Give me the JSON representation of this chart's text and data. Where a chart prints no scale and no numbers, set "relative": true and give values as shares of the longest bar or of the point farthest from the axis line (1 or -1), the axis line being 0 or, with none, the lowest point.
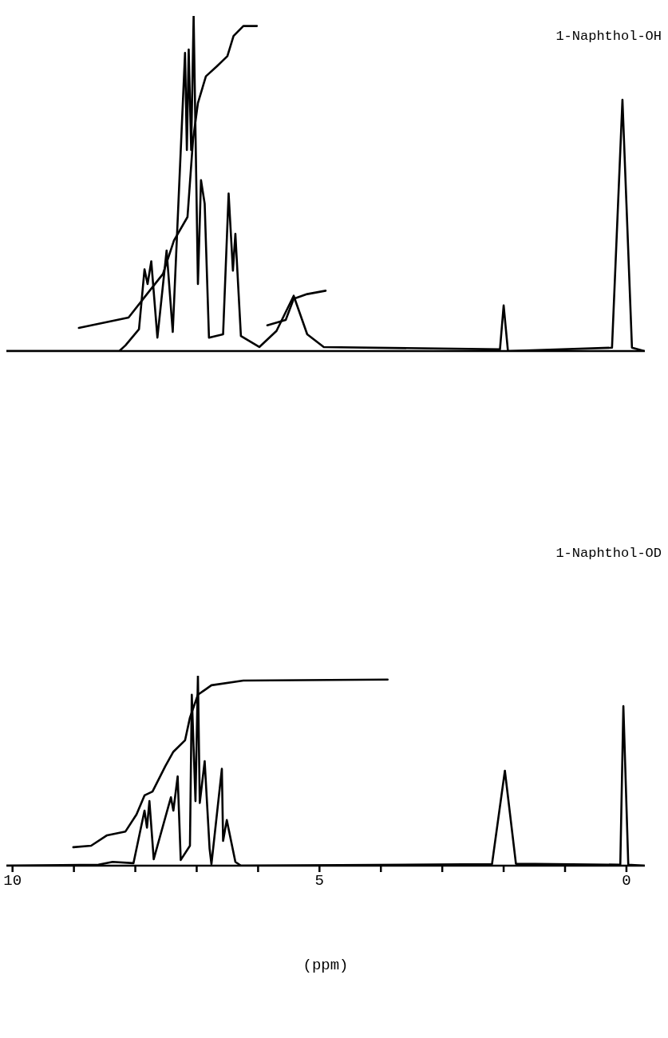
{
  "chart_data": [
    {
      "type": "line",
      "title": "1-Naphthol-OH",
      "relative": true,
      "xlim": [
        10.1,
        -0.3
      ],
      "tick_labels": false,
      "series": [
        {
          "color": "#000000",
          "x": [
            10.09,
            8.26,
            8.16,
            7.94,
            7.85,
            7.8,
            7.74,
            7.64,
            7.49,
            7.39,
            7.19,
            7.16,
            7.13,
            7.09,
            7.05,
            6.98,
            6.93,
            6.87,
            6.8,
            6.57,
            6.48,
            6.41,
            6.37,
            6.28,
            5.98,
            5.7,
            5.42,
            5.2,
            4.93,
            2.06,
            2.0,
            1.93,
            0.235,
            0.065,
            -0.09,
            -0.29
          ],
          "values": [
            0,
            0,
            0.017,
            0.065,
            0.244,
            0.2,
            0.268,
            0.04,
            0.3,
            0.057,
            0.89,
            0.6,
            0.9,
            0.6,
            1.0,
            0.2,
            0.51,
            0.44,
            0.04,
            0.05,
            0.47,
            0.24,
            0.35,
            0.045,
            0.012,
            0.06,
            0.165,
            0.05,
            0.012,
            0.005,
            0.136,
            0,
            0.01,
            0.75,
            0.01,
            0
          ]
        },
        {
          "color": "#000000",
          "x": [
            8.92,
            8.11,
            7.81,
            7.55,
            7.37,
            7.15,
            7.06,
            6.98,
            6.85,
            6.67,
            6.5,
            6.4,
            6.24,
            6.02,
            5.95,
            5.85,
            5.55,
            5.42,
            5.2,
            4.9
          ],
          "values": [
            0.069,
            0.1,
            0.17,
            0.23,
            0.33,
            0.4,
            0.63,
            0.74,
            0.82,
            0.85,
            0.88,
            0.94,
            0.97,
            0.97,
            null,
            0.077,
            0.093,
            0.156,
            0.17,
            0.18
          ]
        }
      ]
    },
    {
      "type": "line",
      "title": "1-Naphthol-OD",
      "relative": true,
      "xlabel": "(ppm)",
      "xlim": [
        10.1,
        -0.3
      ],
      "xticks": [
        10,
        {
          "value": 9,
          "label": null
        },
        {
          "value": 8,
          "label": null
        },
        {
          "value": 7,
          "label": null
        },
        {
          "value": 6,
          "label": null
        },
        5,
        {
          "value": 4,
          "label": null
        },
        {
          "value": 3,
          "label": null
        },
        {
          "value": 2,
          "label": null
        },
        {
          "value": 1,
          "label": null
        },
        0
      ],
      "tick_labels": "x",
      "series": [
        {
          "color": "#000000",
          "x": [
            10.09,
            8.6,
            8.37,
            8.03,
            7.85,
            7.81,
            7.77,
            7.7,
            7.42,
            7.38,
            7.31,
            7.26,
            7.11,
            7.08,
            7.02,
            6.98,
            6.95,
            6.87,
            6.79,
            6.76,
            6.59,
            6.57,
            6.51,
            6.37,
            6.28,
            2.19,
            1.98,
            1.8,
            0.1,
            0.05,
            -0.03,
            -0.29
          ],
          "values": [
            0,
            0.005,
            0.02,
            0.013,
            0.29,
            0.2,
            0.34,
            0.034,
            0.36,
            0.29,
            0.47,
            0.03,
            0.105,
            0.9,
            0.34,
            1.0,
            0.33,
            0.55,
            0.09,
            0.008,
            0.51,
            0.13,
            0.24,
            0.02,
            0,
            0.008,
            0.5,
            0.01,
            0.005,
            0.84,
            0.005,
            0
          ]
        },
        {
          "color": "#000000",
          "x": [
            9.01,
            8.72,
            8.46,
            8.16,
            7.98,
            7.85,
            7.72,
            7.51,
            7.38,
            7.19,
            7.11,
            6.98,
            6.76,
            6.24,
            3.89
          ],
          "values": [
            0.097,
            0.105,
            0.16,
            0.18,
            0.27,
            0.37,
            0.39,
            0.525,
            0.6,
            0.66,
            0.78,
            0.9,
            0.95,
            0.975,
            0.98
          ]
        }
      ]
    }
  ]
}
